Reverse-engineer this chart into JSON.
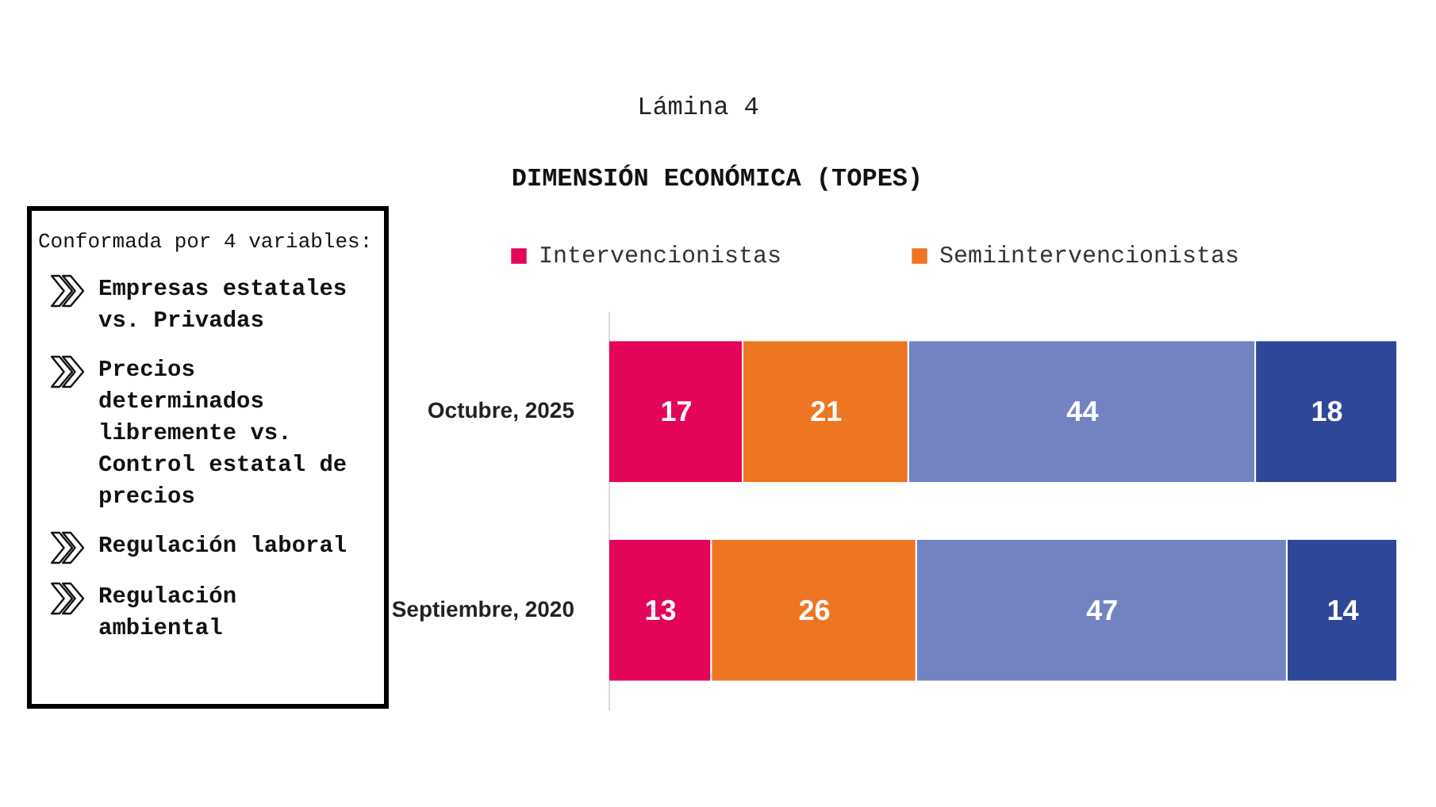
{
  "chart_data": [
    {
      "type": "bar",
      "title": "Lámina 4",
      "subtitle": "DIMENSIÓN ECONÓMICA (TOPES)",
      "orientation": "horizontal",
      "stacked": true,
      "categories": [
        "Octubre, 2025",
        "Septiembre, 2020"
      ],
      "series": [
        {
          "name": "Intervencionistas",
          "color": "#e4055a",
          "values": [
            17,
            13
          ]
        },
        {
          "name": "Semiintervencionistas",
          "color": "#ee7521",
          "values": [
            21,
            26
          ]
        },
        {
          "color": "#7383c2",
          "values": [
            44,
            47
          ]
        },
        {
          "color": "#2f4799",
          "values": [
            18,
            14
          ]
        }
      ],
      "xlim": [
        0,
        100
      ],
      "data_labels": true,
      "legend": "top left",
      "tick_labels": "y"
    },
    {
      "type": "other",
      "title": "Conformada por 4 variables:",
      "annotations": [
        "Empresas estatales vs. Privadas",
        "Precios determinados libremente vs. Control estatal de precios",
        "Regulación laboral",
        "Regulación ambiental"
      ]
    }
  ]
}
